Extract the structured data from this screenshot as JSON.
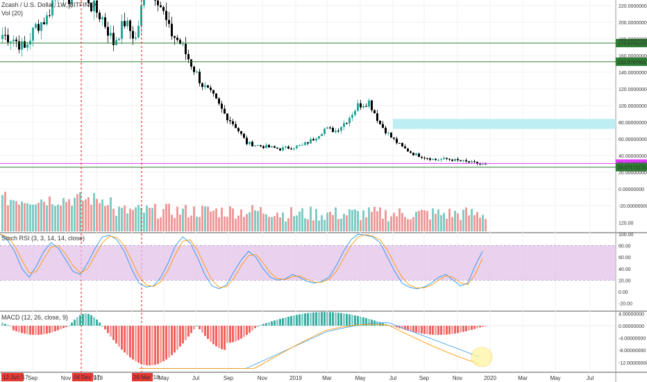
{
  "chart_data": {
    "type": "candlestick",
    "instrument": "Zcash / U.S. Dollar, 1W, BITFINEX",
    "volume_label": "Vol (20)",
    "rsi_label": "Stoch RSI (3, 3, 14, 14, close)",
    "macd_label": "MACD (12, 26, close, 9)",
    "price_axis": [
      220,
      200,
      180,
      160,
      140,
      120,
      100,
      80,
      60,
      40,
      20,
      0,
      -20
    ],
    "price_axis_labels": [
      "220.00000000",
      "200.00000000",
      "180.00000000",
      "160.00000000",
      "140.00000000",
      "120.00000000",
      "100.00000000",
      "80.00000000",
      "60.00000000",
      "40.00000000",
      "20.00000000",
      "0.00000000",
      "-20.00000000"
    ],
    "rsi_axis_labels": [
      "120.00",
      "100.00",
      "80.00",
      "60.00",
      "40.00",
      "20.00",
      "0.00",
      "-20.00"
    ],
    "macd_axis_labels": [
      "4.00000000",
      "0.00000000",
      "-4.00000000",
      "-8.00000000",
      "-12.00000000"
    ],
    "time_labels": [
      "Sep",
      "Nov",
      "2018",
      "May",
      "Jul",
      "Sep",
      "Nov",
      "2019",
      "Mar",
      "May",
      "Jul",
      "Sep",
      "Nov",
      "2020",
      "Mar",
      "May",
      "Jul"
    ],
    "date_flags": [
      "12 Jun '17",
      "04 Dec '17",
      "26 Mar '18"
    ],
    "horizontal_levels": [
      {
        "value": 174.97042293,
        "label": "174.97042293",
        "color": "#2e7d32"
      },
      {
        "value": 152.57676917,
        "label": "152.57676917",
        "color": "#2e7d32"
      },
      {
        "value": 30.48492,
        "label": "30.48492000",
        "color": "#e040fb"
      },
      {
        "value": 26.07,
        "label": "26.07171175",
        "color": "#2e7d32"
      }
    ],
    "resistance_zone": [
      72,
      84
    ],
    "colors": {
      "up": "#26a69a",
      "down": "#000000",
      "vol_up": "#80cbc4",
      "vol_down": "#ef9a9a",
      "macd_pos": "#26a69a",
      "macd_neg": "#ef5350",
      "rsi_band": "#e1bee7",
      "k_line": "#2196f3",
      "d_line": "#ff9800"
    }
  }
}
